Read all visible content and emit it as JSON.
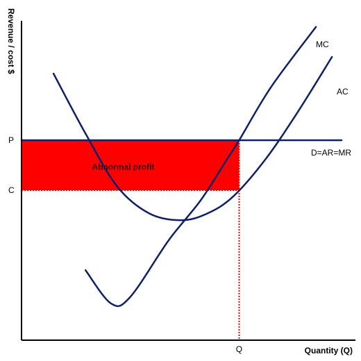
{
  "chart_data": {
    "type": "line",
    "title": "",
    "xlabel": "Quantity (Q)",
    "ylabel": "Revenue / cost $",
    "x_ticks": [
      {
        "label": "Q",
        "value": 0.68
      }
    ],
    "y_ticks": [
      {
        "label": "P",
        "value": 0.6
      },
      {
        "label": "C",
        "value": 0.45
      }
    ],
    "xlim": [
      0,
      1
    ],
    "ylim": [
      0,
      1
    ],
    "grid": false,
    "series": [
      {
        "name": "MC",
        "color": "#0c1f6b",
        "points": [
          [
            0.2,
            0.21
          ],
          [
            0.28,
            0.11
          ],
          [
            0.34,
            0.13
          ],
          [
            0.46,
            0.3
          ],
          [
            0.56,
            0.42
          ],
          [
            0.64,
            0.54
          ],
          [
            0.68,
            0.6
          ],
          [
            0.78,
            0.76
          ],
          [
            0.92,
            0.94
          ]
        ]
      },
      {
        "name": "AC",
        "color": "#0c1f6b",
        "points": [
          [
            0.1,
            0.8
          ],
          [
            0.2,
            0.62
          ],
          [
            0.3,
            0.46
          ],
          [
            0.4,
            0.38
          ],
          [
            0.5,
            0.36
          ],
          [
            0.58,
            0.38
          ],
          [
            0.66,
            0.43
          ],
          [
            0.76,
            0.54
          ],
          [
            0.86,
            0.68
          ],
          [
            0.97,
            0.85
          ]
        ]
      },
      {
        "name": "D=AR=MR",
        "color": "#0c1f6b",
        "points": [
          [
            0,
            0.6
          ],
          [
            1,
            0.6
          ]
        ]
      }
    ],
    "shaded_region": {
      "label": "Abnormal profit",
      "color": "#ff0000",
      "x": [
        0,
        0.68
      ],
      "y": [
        0.45,
        0.6
      ]
    },
    "guide_lines": {
      "color": "#ff0000",
      "style": "dotted"
    }
  }
}
